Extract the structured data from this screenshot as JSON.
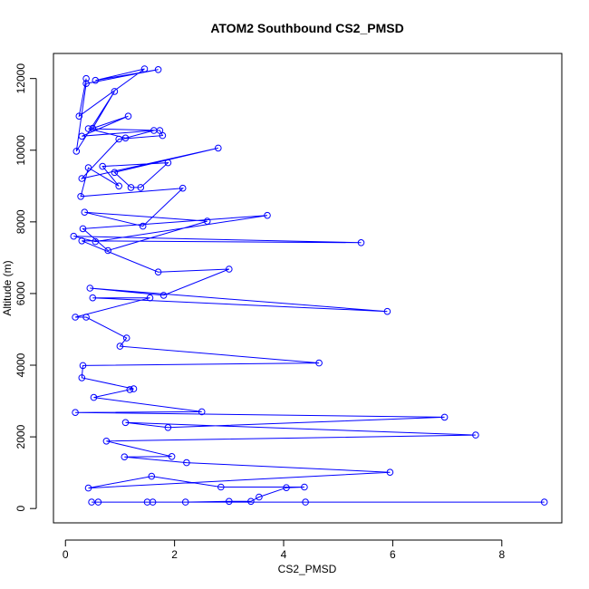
{
  "chart_data": {
    "type": "line",
    "title": "ATOM2 Southbound CS2_PMSD",
    "xlabel": "CS2_PMSD",
    "ylabel": "Altitude (m)",
    "xlim": [
      -0.22,
      9.1
    ],
    "ylim": [
      -400,
      12700
    ],
    "x_ticks": [
      0,
      2,
      4,
      6,
      8
    ],
    "y_ticks": [
      0,
      2000,
      4000,
      6000,
      8000,
      10000,
      12000
    ],
    "grid": false,
    "legend": "none",
    "markers": "open-circle",
    "series": [
      {
        "color": "#0000ff",
        "x": [
          0.38,
          0.25,
          1.45,
          0.55,
          1.7,
          0.38,
          0.2,
          0.9,
          0.5,
          1.15,
          0.3,
          1.62,
          1.1,
          0.42,
          1.73,
          1.78,
          0.98,
          0.3,
          2.8,
          0.9,
          1.2,
          1.38,
          1.88,
          0.68,
          0.98,
          0.42,
          0.28,
          2.15,
          1.42,
          0.35,
          2.6,
          0.78,
          0.32,
          3.7,
          0.55,
          0.15,
          5.42,
          0.3,
          1.7,
          3.0,
          1.8,
          0.45,
          5.9,
          0.5,
          1.55,
          0.18,
          0.38,
          1.12,
          1.0,
          4.65,
          0.32,
          0.3,
          1.25,
          1.18,
          0.52,
          2.5,
          0.18,
          6.95,
          1.88,
          1.1,
          7.52,
          0.75,
          1.95,
          1.08,
          2.22,
          5.95,
          0.42,
          1.58,
          2.85,
          4.38,
          4.05,
          3.55,
          3.4,
          3.0,
          2.2,
          1.6,
          0.48,
          8.78,
          0.6,
          1.5,
          4.4
        ],
        "y": [
          12000,
          10950,
          12270,
          11950,
          12250,
          11860,
          9970,
          11640,
          10610,
          10950,
          10390,
          10550,
          10340,
          10600,
          10550,
          10410,
          10310,
          9210,
          10060,
          9380,
          8960,
          8960,
          9650,
          9550,
          9000,
          9510,
          8710,
          8940,
          7880,
          8270,
          8020,
          7200,
          7810,
          8180,
          7450,
          7600,
          7420,
          7470,
          6600,
          6680,
          5950,
          6150,
          5500,
          5880,
          5880,
          5340,
          5340,
          4760,
          4530,
          4060,
          3990,
          3650,
          3340,
          3320,
          3100,
          2700,
          2680,
          2550,
          2260,
          2400,
          2050,
          1880,
          1450,
          1440,
          1280,
          1010,
          570,
          900,
          600,
          600,
          580,
          320,
          200,
          200,
          180,
          180,
          180,
          180,
          180,
          180,
          180
        ]
      }
    ]
  }
}
